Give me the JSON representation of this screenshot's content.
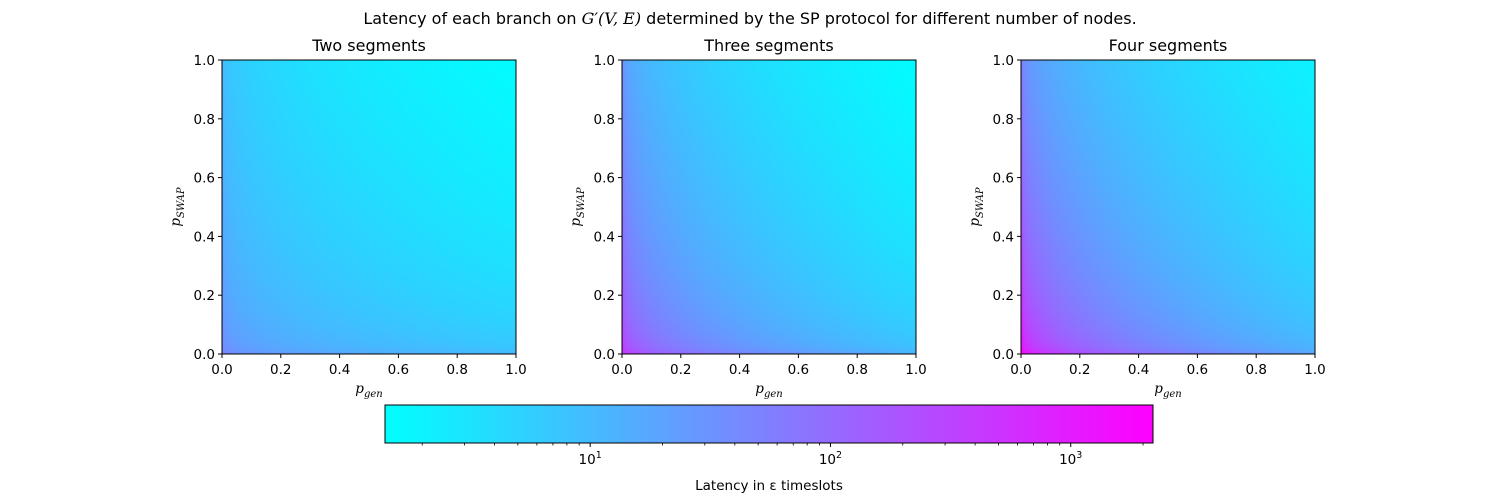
{
  "figure": {
    "title_prefix": "Latency of each branch on ",
    "title_math": "G′(V, E)",
    "title_suffix": " determined by the SP protocol for different number of nodes."
  },
  "chart_data": [
    {
      "type": "heatmap",
      "title": "Two segments",
      "xlabel": "p_gen",
      "ylabel": "p_SWAP",
      "xlim": [
        0.0,
        1.0
      ],
      "ylim": [
        0.0,
        1.0
      ],
      "xticks": [
        "0.0",
        "0.2",
        "0.4",
        "0.6",
        "0.8",
        "1.0"
      ],
      "yticks": [
        "0.0",
        "0.2",
        "0.4",
        "0.6",
        "0.8",
        "1.0"
      ],
      "corner_latency": {
        "p_gen=0,p_swap=0": 50,
        "p_gen=1,p_swap=0": 10,
        "p_gen=0,p_swap=1": 10,
        "p_gen=1,p_swap=1": 1.5
      }
    },
    {
      "type": "heatmap",
      "title": "Three segments",
      "xlabel": "p_gen",
      "ylabel": "p_SWAP",
      "xlim": [
        0.0,
        1.0
      ],
      "ylim": [
        0.0,
        1.0
      ],
      "xticks": [
        "0.0",
        "0.2",
        "0.4",
        "0.6",
        "0.8",
        "1.0"
      ],
      "yticks": [
        "0.0",
        "0.2",
        "0.4",
        "0.6",
        "0.8",
        "1.0"
      ],
      "corner_latency": {
        "p_gen=0,p_swap=0": 600,
        "p_gen=1,p_swap=0": 12,
        "p_gen=0,p_swap=1": 30,
        "p_gen=1,p_swap=1": 1.5
      }
    },
    {
      "type": "heatmap",
      "title": "Four segments",
      "xlabel": "p_gen",
      "ylabel": "p_SWAP",
      "xlim": [
        0.0,
        1.0
      ],
      "ylim": [
        0.0,
        1.0
      ],
      "xticks": [
        "0.0",
        "0.2",
        "0.4",
        "0.6",
        "0.8",
        "1.0"
      ],
      "yticks": [
        "0.0",
        "0.2",
        "0.4",
        "0.6",
        "0.8",
        "1.0"
      ],
      "corner_latency": {
        "p_gen=0,p_swap=0": 2200,
        "p_gen=1,p_swap=0": 18,
        "p_gen=0,p_swap=1": 50,
        "p_gen=1,p_swap=1": 2
      }
    }
  ],
  "colorbar": {
    "scale": "log",
    "colormap": "cool",
    "color_min": "#00ffff",
    "color_max": "#ff00ff",
    "range": [
      1.4,
      2200
    ],
    "major_ticks": [
      {
        "value": 10,
        "mantissa": "10",
        "exp": "1"
      },
      {
        "value": 100,
        "mantissa": "10",
        "exp": "2"
      },
      {
        "value": 1000,
        "mantissa": "10",
        "exp": "3"
      }
    ],
    "label": "Latency in ε timeslots"
  }
}
